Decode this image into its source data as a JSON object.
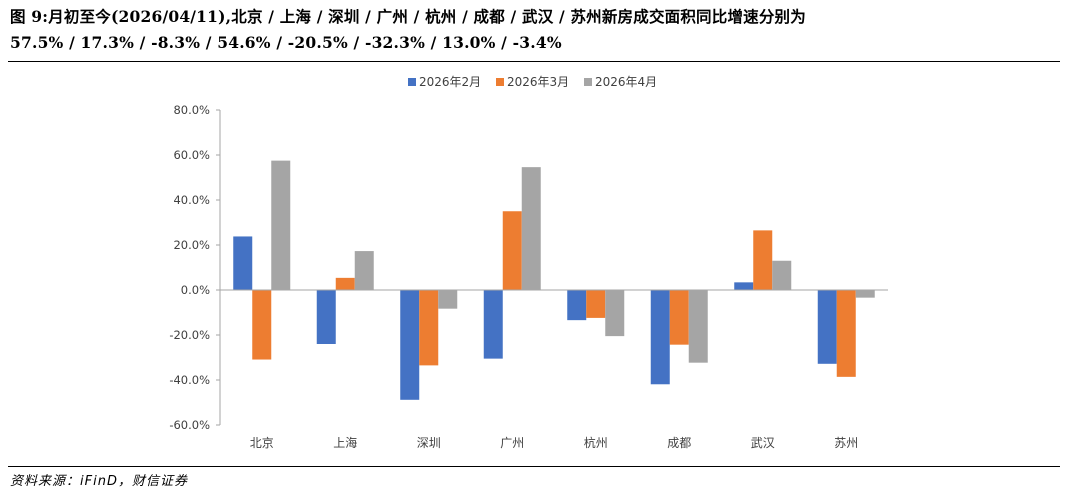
{
  "header": {
    "title_line1": "图 9:月初至今(2026/04/11),北京 / 上海 / 深圳 / 广州 / 杭州 / 成都 / 武汉 / 苏州新房成交面积同比增速分别为",
    "title_line2": "57.5% / 17.3% / -8.3% / 54.6% / -20.5% / -32.3% / 13.0% / -3.4%"
  },
  "footer": {
    "source": "资料来源：iFinD，财信证券"
  },
  "colors": {
    "series1": "#4472C4",
    "series2": "#ED7D31",
    "series3": "#A5A5A5",
    "axis": "#A6A6A6"
  },
  "chart_data": {
    "type": "bar",
    "title": "",
    "xlabel": "",
    "ylabel": "",
    "legend_position": "top-center",
    "grid": false,
    "categories": [
      "北京",
      "上海",
      "深圳",
      "广州",
      "杭州",
      "成都",
      "武汉",
      "苏州"
    ],
    "ylim": [
      -60,
      80
    ],
    "yticks": [
      80,
      60,
      40,
      20,
      0,
      -20,
      -40,
      -60
    ],
    "ytick_labels": [
      "80.0%",
      "60.0%",
      "40.0%",
      "20.0%",
      "0.0%",
      "-20.0%",
      "-40.0%",
      "-60.0%"
    ],
    "series": [
      {
        "name": "2026年2月",
        "values": [
          23.8,
          -24.0,
          -48.8,
          -30.5,
          -13.4,
          -41.9,
          3.4,
          -32.8
        ]
      },
      {
        "name": "2026年3月",
        "values": [
          -30.9,
          5.4,
          -33.5,
          35.0,
          -12.4,
          -24.3,
          26.5,
          -38.6
        ]
      },
      {
        "name": "2026年4月",
        "values": [
          57.5,
          17.3,
          -8.3,
          54.6,
          -20.5,
          -32.3,
          13.0,
          -3.4
        ]
      }
    ]
  }
}
